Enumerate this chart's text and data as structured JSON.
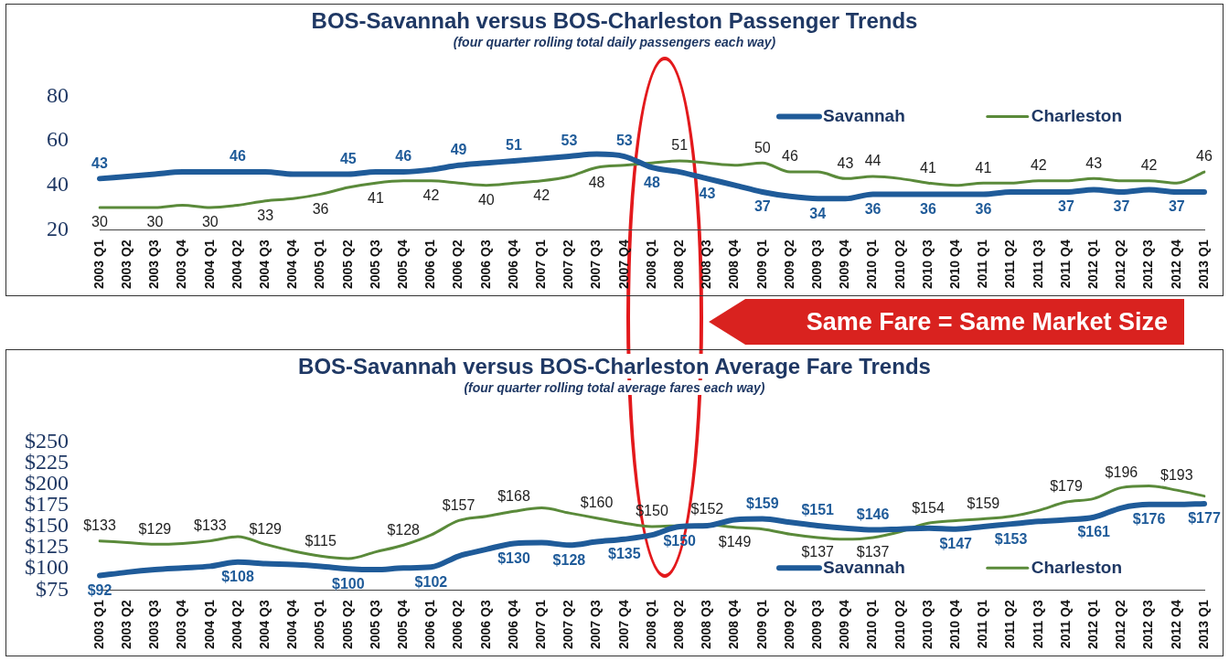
{
  "chart_data": [
    {
      "type": "line",
      "title": "BOS-Savannah versus BOS-Charleston Passenger Trends",
      "subtitle": "(four quarter rolling total daily passengers each way)",
      "categories": [
        "2003 Q1",
        "2003 Q2",
        "2003 Q3",
        "2003 Q4",
        "2004 Q1",
        "2004 Q2",
        "2004 Q3",
        "2004 Q4",
        "2005 Q1",
        "2005 Q2",
        "2005 Q3",
        "2005 Q4",
        "2006 Q1",
        "2006 Q2",
        "2006 Q3",
        "2006 Q4",
        "2007 Q1",
        "2007 Q2",
        "2007 Q3",
        "2007 Q4",
        "2008 Q1",
        "2008 Q2",
        "2008 Q3",
        "2008 Q4",
        "2009 Q1",
        "2009 Q2",
        "2009 Q3",
        "2009 Q4",
        "2010 Q1",
        "2010 Q2",
        "2010 Q3",
        "2010 Q4",
        "2011 Q1",
        "2011 Q2",
        "2011 Q3",
        "2011 Q4",
        "2012 Q1",
        "2012 Q2",
        "2012 Q3",
        "2012 Q4",
        "2013 Q1"
      ],
      "series": [
        {
          "name": "Savannah",
          "color": "#1f5b99",
          "values": [
            43,
            44,
            45,
            46,
            46,
            46,
            46,
            45,
            45,
            45,
            46,
            46,
            47,
            49,
            50,
            51,
            52,
            53,
            54,
            53,
            48,
            46,
            43,
            40,
            37,
            35,
            34,
            34,
            36,
            36,
            36,
            36,
            36,
            37,
            37,
            37,
            38,
            37,
            38,
            37,
            37
          ],
          "value_labels": [
            "43",
            null,
            null,
            null,
            null,
            "46",
            null,
            null,
            null,
            "45",
            null,
            "46",
            null,
            "49",
            null,
            "51",
            null,
            "53",
            null,
            "53",
            "48",
            null,
            "43",
            null,
            "37",
            null,
            "34",
            null,
            "36",
            null,
            "36",
            null,
            "36",
            null,
            null,
            "37",
            null,
            "37",
            null,
            "37",
            null
          ]
        },
        {
          "name": "Charleston",
          "color": "#5a8a3a",
          "values": [
            30,
            30,
            30,
            31,
            30,
            31,
            33,
            34,
            36,
            39,
            41,
            42,
            42,
            41,
            40,
            41,
            42,
            44,
            48,
            49,
            50,
            51,
            50,
            49,
            50,
            46,
            46,
            43,
            44,
            43,
            41,
            40,
            41,
            41,
            42,
            42,
            43,
            42,
            42,
            41,
            46
          ],
          "value_labels": [
            "30",
            null,
            "30",
            null,
            "30",
            null,
            "33",
            null,
            "36",
            null,
            "41",
            null,
            "42",
            null,
            "40",
            null,
            "42",
            null,
            "48",
            null,
            null,
            "51",
            null,
            null,
            "50",
            "46",
            null,
            "43",
            "44",
            null,
            "41",
            null,
            "41",
            null,
            "42",
            null,
            "43",
            null,
            "42",
            null,
            "46"
          ]
        }
      ],
      "ylim": [
        20,
        80
      ],
      "yticks": [
        20,
        40,
        60,
        80
      ],
      "grid": false,
      "legend": "top right",
      "annotations": [
        "Same Fare = Same Market Size"
      ]
    },
    {
      "type": "line",
      "title": "BOS-Savannah versus BOS-Charleston Average Fare Trends",
      "subtitle": "(four quarter rolling total average fares each way)",
      "categories": [
        "2003 Q1",
        "2003 Q2",
        "2003 Q3",
        "2003 Q4",
        "2004 Q1",
        "2004 Q2",
        "2004 Q3",
        "2004 Q4",
        "2005 Q1",
        "2005 Q2",
        "2005 Q3",
        "2005 Q4",
        "2006 Q1",
        "2006 Q2",
        "2006 Q3",
        "2006 Q4",
        "2007 Q1",
        "2007 Q2",
        "2007 Q3",
        "2007 Q4",
        "2008 Q1",
        "2008 Q2",
        "2008 Q3",
        "2008 Q4",
        "2009 Q1",
        "2009 Q2",
        "2009 Q3",
        "2009 Q4",
        "2010 Q1",
        "2010 Q2",
        "2010 Q3",
        "2010 Q4",
        "2011 Q1",
        "2011 Q2",
        "2011 Q3",
        "2011 Q4",
        "2012 Q1",
        "2012 Q2",
        "2012 Q3",
        "2012 Q4",
        "2013 Q1"
      ],
      "series": [
        {
          "name": "Savannah",
          "color": "#1f5b99",
          "values": [
            92,
            96,
            99,
            101,
            103,
            108,
            106,
            105,
            103,
            100,
            99,
            101,
            102,
            115,
            123,
            130,
            131,
            128,
            132,
            135,
            140,
            150,
            151,
            158,
            159,
            155,
            151,
            148,
            146,
            147,
            148,
            147,
            150,
            153,
            156,
            158,
            161,
            172,
            176,
            176,
            177
          ],
          "value_labels": [
            "$92",
            null,
            null,
            null,
            null,
            "$108",
            null,
            null,
            null,
            "$100",
            null,
            null,
            "$102",
            null,
            null,
            "$130",
            null,
            "$128",
            null,
            "$135",
            null,
            "$150",
            null,
            null,
            "$159",
            null,
            "$151",
            null,
            "$146",
            null,
            null,
            "$147",
            null,
            "$153",
            null,
            null,
            "$161",
            null,
            "$176",
            null,
            "$177"
          ]
        },
        {
          "name": "Charleston",
          "color": "#5a8a3a",
          "values": [
            133,
            131,
            129,
            130,
            133,
            138,
            129,
            121,
            115,
            112,
            120,
            128,
            140,
            157,
            162,
            168,
            172,
            166,
            160,
            154,
            150,
            151,
            152,
            149,
            147,
            141,
            137,
            135,
            137,
            144,
            154,
            157,
            159,
            162,
            169,
            179,
            183,
            196,
            198,
            193,
            186
          ],
          "value_labels": [
            "$133",
            null,
            "$129",
            null,
            "$133",
            null,
            "$129",
            null,
            "$115",
            null,
            null,
            "$128",
            null,
            "$157",
            null,
            "$168",
            null,
            null,
            "$160",
            null,
            "$150",
            null,
            "$152",
            "$149",
            null,
            null,
            "$137",
            null,
            "$137",
            null,
            "$154",
            null,
            "$159",
            null,
            null,
            "$179",
            null,
            "$196",
            null,
            "$193",
            null
          ]
        }
      ],
      "ylim": [
        75,
        250
      ],
      "yticks": [
        {
          "value": 75,
          "label": "$75"
        },
        {
          "value": 100,
          "label": "$100"
        },
        {
          "value": 125,
          "label": "$125"
        },
        {
          "value": 150,
          "label": "$150"
        },
        {
          "value": 175,
          "label": "$175"
        },
        {
          "value": 200,
          "label": "$200"
        },
        {
          "value": 225,
          "label": "$225"
        },
        {
          "value": 250,
          "label": "$250"
        }
      ],
      "grid": false,
      "legend": "bottom right"
    }
  ]
}
